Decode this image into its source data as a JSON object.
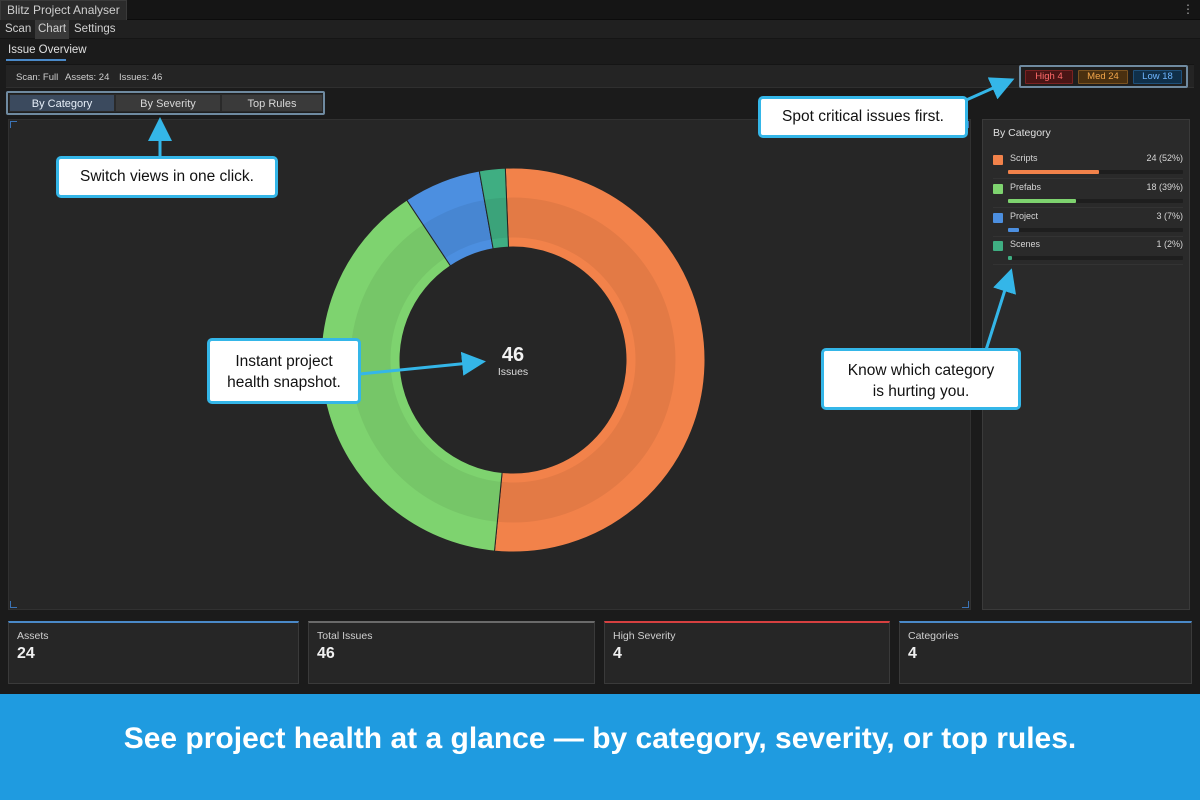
{
  "window": {
    "title": "Blitz Project Analyser",
    "menu_icon": "kebab-menu-icon"
  },
  "menu": [
    {
      "label": "Scan"
    },
    {
      "label": "Chart"
    },
    {
      "label": "Settings"
    }
  ],
  "section": {
    "title": "Issue Overview"
  },
  "info": {
    "scan": "Scan: Full",
    "assets": "Assets: 24",
    "issues": "Issues: 46"
  },
  "severity": {
    "high": "High 4",
    "med": "Med 24",
    "low": "Low 18"
  },
  "view_tabs": [
    {
      "label": "By Category"
    },
    {
      "label": "By Severity"
    },
    {
      "label": "Top Rules"
    }
  ],
  "center": {
    "count": "46",
    "label": "Issues"
  },
  "side": {
    "title": "By Category"
  },
  "chart_data": {
    "type": "donut",
    "total": 46,
    "categories": [
      "Scripts",
      "Prefabs",
      "Project",
      "Scenes"
    ],
    "values": [
      24,
      18,
      3,
      1
    ],
    "colors": [
      "#f2824a",
      "#7ed36f",
      "#4c8fe0",
      "#3fae82"
    ],
    "labels": [
      "24 (52%)",
      "18 (39%)",
      "3 (7%)",
      "1 (2%)"
    ]
  },
  "cards": [
    {
      "label": "Assets",
      "value": "24",
      "accent": "#4a89c8"
    },
    {
      "label": "Total Issues",
      "value": "46",
      "accent": "#6a6a6a"
    },
    {
      "label": "High Severity",
      "value": "4",
      "accent": "#d64040"
    },
    {
      "label": "Categories",
      "value": "4",
      "accent": "#4a89c8"
    }
  ],
  "callouts": {
    "switch": "Switch views in one click.",
    "critical": "Spot critical issues first.",
    "health_line1": "Instant project",
    "health_line2": "health snapshot.",
    "category_line1": "Know which category",
    "category_line2": "is hurting you."
  },
  "banner": {
    "text": "See project health at a glance — by category, severity, or top rules."
  }
}
